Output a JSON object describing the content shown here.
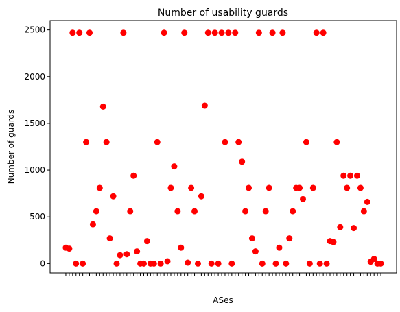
{
  "chart_data": {
    "type": "scatter",
    "title": "Number of usability guards",
    "xlabel": "ASes",
    "ylabel": "Number of guards",
    "ylim": [
      -100,
      2600
    ],
    "yticks": [
      0,
      500,
      1000,
      1500,
      2000,
      2500
    ],
    "grid": false,
    "marker_color": "#ff0000",
    "points": [
      {
        "x": 1,
        "y": 170
      },
      {
        "x": 2,
        "y": 160
      },
      {
        "x": 3,
        "y": 2470
      },
      {
        "x": 4,
        "y": 0
      },
      {
        "x": 5,
        "y": 2470
      },
      {
        "x": 6,
        "y": 0
      },
      {
        "x": 7,
        "y": 1300
      },
      {
        "x": 8,
        "y": 2470
      },
      {
        "x": 9,
        "y": 420
      },
      {
        "x": 10,
        "y": 560
      },
      {
        "x": 11,
        "y": 810
      },
      {
        "x": 12,
        "y": 1680
      },
      {
        "x": 13,
        "y": 1300
      },
      {
        "x": 14,
        "y": 270
      },
      {
        "x": 15,
        "y": 720
      },
      {
        "x": 16,
        "y": 0
      },
      {
        "x": 17,
        "y": 90
      },
      {
        "x": 18,
        "y": 2470
      },
      {
        "x": 19,
        "y": 100
      },
      {
        "x": 20,
        "y": 560
      },
      {
        "x": 21,
        "y": 940
      },
      {
        "x": 22,
        "y": 130
      },
      {
        "x": 23,
        "y": 0
      },
      {
        "x": 24,
        "y": 0
      },
      {
        "x": 25,
        "y": 240
      },
      {
        "x": 26,
        "y": 0
      },
      {
        "x": 27,
        "y": 0
      },
      {
        "x": 28,
        "y": 1300
      },
      {
        "x": 29,
        "y": 0
      },
      {
        "x": 30,
        "y": 2470
      },
      {
        "x": 31,
        "y": 25
      },
      {
        "x": 32,
        "y": 810
      },
      {
        "x": 33,
        "y": 1040
      },
      {
        "x": 34,
        "y": 560
      },
      {
        "x": 35,
        "y": 170
      },
      {
        "x": 36,
        "y": 2470
      },
      {
        "x": 37,
        "y": 10
      },
      {
        "x": 38,
        "y": 810
      },
      {
        "x": 39,
        "y": 560
      },
      {
        "x": 40,
        "y": 0
      },
      {
        "x": 41,
        "y": 720
      },
      {
        "x": 42,
        "y": 1690
      },
      {
        "x": 43,
        "y": 2470
      },
      {
        "x": 44,
        "y": 0
      },
      {
        "x": 45,
        "y": 2470
      },
      {
        "x": 46,
        "y": 0
      },
      {
        "x": 47,
        "y": 2470
      },
      {
        "x": 48,
        "y": 1300
      },
      {
        "x": 49,
        "y": 2470
      },
      {
        "x": 50,
        "y": 0
      },
      {
        "x": 51,
        "y": 2470
      },
      {
        "x": 52,
        "y": 1300
      },
      {
        "x": 53,
        "y": 1090
      },
      {
        "x": 54,
        "y": 560
      },
      {
        "x": 55,
        "y": 810
      },
      {
        "x": 56,
        "y": 270
      },
      {
        "x": 57,
        "y": 130
      },
      {
        "x": 58,
        "y": 2470
      },
      {
        "x": 59,
        "y": 0
      },
      {
        "x": 60,
        "y": 560
      },
      {
        "x": 61,
        "y": 810
      },
      {
        "x": 62,
        "y": 2470
      },
      {
        "x": 63,
        "y": 0
      },
      {
        "x": 64,
        "y": 170
      },
      {
        "x": 65,
        "y": 2470
      },
      {
        "x": 66,
        "y": 0
      },
      {
        "x": 67,
        "y": 270
      },
      {
        "x": 68,
        "y": 560
      },
      {
        "x": 69,
        "y": 810
      },
      {
        "x": 70,
        "y": 810
      },
      {
        "x": 71,
        "y": 690
      },
      {
        "x": 72,
        "y": 1300
      },
      {
        "x": 73,
        "y": 0
      },
      {
        "x": 74,
        "y": 810
      },
      {
        "x": 75,
        "y": 2470
      },
      {
        "x": 76,
        "y": 0
      },
      {
        "x": 77,
        "y": 2470
      },
      {
        "x": 78,
        "y": 0
      },
      {
        "x": 79,
        "y": 240
      },
      {
        "x": 80,
        "y": 230
      },
      {
        "x": 81,
        "y": 1300
      },
      {
        "x": 82,
        "y": 390
      },
      {
        "x": 83,
        "y": 940
      },
      {
        "x": 84,
        "y": 810
      },
      {
        "x": 85,
        "y": 940
      },
      {
        "x": 86,
        "y": 380
      },
      {
        "x": 87,
        "y": 940
      },
      {
        "x": 88,
        "y": 810
      },
      {
        "x": 89,
        "y": 560
      },
      {
        "x": 90,
        "y": 660
      },
      {
        "x": 91,
        "y": 20
      },
      {
        "x": 92,
        "y": 50
      },
      {
        "x": 93,
        "y": 0
      },
      {
        "x": 94,
        "y": 0
      }
    ]
  }
}
